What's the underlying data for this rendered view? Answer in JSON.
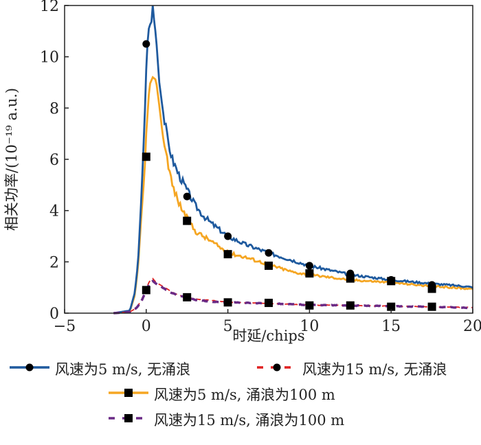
{
  "chart_data": {
    "type": "line",
    "xlabel": "时延/chips",
    "ylabel": "相关功率/(10⁻¹⁹ a.u.)",
    "xlim": [
      -5,
      20
    ],
    "ylim": [
      0,
      12
    ],
    "xticks": [
      "−5",
      "0",
      "5",
      "10",
      "15",
      "20"
    ],
    "xtick_values": [
      -5,
      0,
      5,
      10,
      15,
      20
    ],
    "yticks": [
      "0",
      "2",
      "4",
      "6",
      "8",
      "10",
      "12"
    ],
    "ytick_values": [
      0,
      2,
      4,
      6,
      8,
      10,
      12
    ],
    "grid": false,
    "legend_position": "bottom",
    "series": [
      {
        "name": "风速为5 m/s, 无涌浪",
        "color": "#1f5a9e",
        "dash": false,
        "marker": "circle",
        "x": [
          -2,
          -1.5,
          -1,
          -0.7,
          -0.5,
          -0.3,
          -0.1,
          0,
          0.1,
          0.2,
          0.3,
          0.4,
          0.5,
          0.6,
          0.8,
          1.0,
          1.3,
          1.6,
          2,
          2.5,
          3,
          3.5,
          4,
          5,
          6,
          7.5,
          9,
          10,
          12.5,
          15,
          17.5,
          19.5,
          20
        ],
        "y": [
          0,
          0.05,
          0.1,
          0.8,
          2,
          4.5,
          7.5,
          9.5,
          10.8,
          11.3,
          11.2,
          12,
          11.3,
          10.8,
          9,
          8,
          6.8,
          6,
          5.4,
          4.8,
          4.2,
          3.8,
          3.5,
          3.0,
          2.7,
          2.35,
          2.05,
          1.85,
          1.5,
          1.3,
          1.15,
          1.05,
          1.0
        ],
        "marker_x": [
          0,
          2.5,
          5,
          7.5,
          10,
          12.5,
          15,
          17.5
        ],
        "marker_y": [
          10.5,
          4.55,
          3.0,
          2.35,
          1.85,
          1.55,
          1.3,
          1.1
        ]
      },
      {
        "name": "风速为15 m/s, 无涌浪",
        "color": "#e02020",
        "dash": true,
        "marker": "circle",
        "x": [
          -2,
          -1.5,
          -1,
          -0.6,
          -0.3,
          0,
          0.2,
          0.4,
          0.6,
          1,
          1.5,
          2,
          2.5,
          3,
          4,
          5,
          7.5,
          10,
          12.5,
          15,
          17.5,
          20
        ],
        "y": [
          0,
          0.02,
          0.05,
          0.2,
          0.5,
          0.95,
          1.25,
          1.35,
          1.2,
          1.05,
          0.85,
          0.7,
          0.62,
          0.55,
          0.5,
          0.42,
          0.38,
          0.32,
          0.3,
          0.27,
          0.25,
          0.22
        ],
        "marker_x": [],
        "marker_y": []
      },
      {
        "name": "风速为5 m/s, 涌浪为100 m",
        "color": "#f5a623",
        "dash": false,
        "marker": "square",
        "x": [
          -2,
          -1.5,
          -1,
          -0.7,
          -0.5,
          -0.3,
          -0.1,
          0,
          0.2,
          0.4,
          0.6,
          0.8,
          1.0,
          1.3,
          1.6,
          2,
          2.5,
          3,
          3.5,
          4,
          5,
          6,
          7.5,
          9,
          10,
          12.5,
          15,
          17.5,
          20
        ],
        "y": [
          0,
          0.03,
          0.08,
          0.7,
          1.8,
          3.8,
          5.5,
          7.0,
          8.9,
          9.2,
          9.1,
          8.1,
          7.0,
          6.0,
          5.0,
          4.3,
          3.7,
          3.2,
          3.0,
          2.8,
          2.35,
          2.2,
          1.9,
          1.6,
          1.5,
          1.3,
          1.2,
          1.05,
          0.95
        ],
        "marker_x": [
          0,
          2.5,
          5,
          7.5,
          10,
          12.5,
          15,
          17.5
        ],
        "marker_y": [
          6.1,
          3.6,
          2.3,
          1.85,
          1.55,
          1.35,
          1.25,
          0.95
        ]
      },
      {
        "name": "风速为15 m/s, 涌浪为100 m",
        "color": "#6a2a85",
        "dash": true,
        "marker": "square",
        "x": [
          -2,
          -1.5,
          -1,
          -0.6,
          -0.3,
          0,
          0.2,
          0.4,
          0.6,
          1,
          1.5,
          2,
          2.5,
          3,
          4,
          5,
          7.5,
          10,
          12.5,
          15,
          17.5,
          20
        ],
        "y": [
          0,
          0.02,
          0.05,
          0.2,
          0.45,
          0.9,
          1.15,
          1.25,
          1.15,
          1.0,
          0.8,
          0.68,
          0.6,
          0.52,
          0.45,
          0.42,
          0.38,
          0.32,
          0.3,
          0.27,
          0.25,
          0.2
        ],
        "marker_x": [
          0,
          2.5,
          5,
          7.5,
          10,
          12.5,
          15,
          17.5
        ],
        "marker_y": [
          0.9,
          0.62,
          0.42,
          0.4,
          0.3,
          0.3,
          0.25,
          0.25
        ]
      }
    ]
  }
}
